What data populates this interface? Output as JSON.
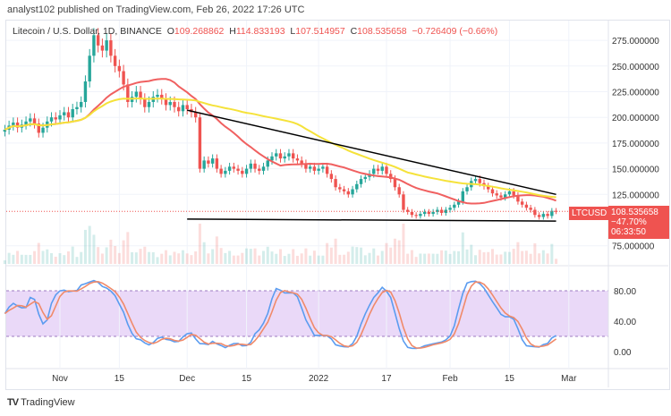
{
  "publish_line": "analyst102 published on TradingView.com, Feb 26, 2022 17:26 UTC",
  "legend": {
    "symbol": "Litecoin / U.S. Dollar, 1D, BINANCE",
    "o_label": "O",
    "o": "109.268862",
    "h_label": "H",
    "h": "114.833193",
    "l_label": "L",
    "l": "107.514957",
    "c_label": "C",
    "c": "108.535658",
    "change": "−0.726409 (−0.66%)"
  },
  "price_tag": {
    "symbol": "LTCUSD",
    "price": "108.535658",
    "change_pct": "−47.70%",
    "countdown": "06:33:50"
  },
  "brand": "TradingView",
  "colors": {
    "up": "#26a69a",
    "down": "#ef5350",
    "sma_fast": "#f06060",
    "sma_slow": "#f5e23a",
    "stoch_k": "#5b9cf0",
    "stoch_d": "#f08a6a",
    "stoch_band": "#e1c9f5",
    "trendline": "#000000"
  },
  "chart_data": {
    "type": "candlestick",
    "price_axis_ticks": [
      "275.000000",
      "250.000000",
      "225.000000",
      "200.000000",
      "175.000000",
      "150.000000",
      "125.000000",
      "75.000000"
    ],
    "price_axis_values": [
      275,
      250,
      225,
      200,
      175,
      150,
      125,
      75
    ],
    "stoch_axis_ticks": [
      "80.00",
      "40.00",
      "0.00"
    ],
    "stoch_axis_values": [
      80,
      40,
      0
    ],
    "time_axis_ticks": [
      "Nov",
      "15",
      "Dec",
      "15",
      "2022",
      "17",
      "Feb",
      "15",
      "Mar"
    ],
    "time_axis_dates": [
      "2021-11-01",
      "2021-11-15",
      "2021-12-01",
      "2021-12-15",
      "2022-01-01",
      "2022-01-17",
      "2022-02-01",
      "2022-02-15",
      "2022-03-01"
    ],
    "closes": {
      "2021-10": {
        "from_day": 19,
        "values": [
          188,
          192,
          195,
          190,
          193,
          196,
          199,
          194,
          185,
          190,
          196,
          200,
          198
        ]
      },
      "2021-11": {
        "from_day": 1,
        "values": [
          202,
          205,
          200,
          208,
          210,
          215,
          235,
          260,
          280,
          270,
          265,
          275,
          260,
          250,
          245,
          232,
          215,
          220,
          225,
          218,
          210,
          215,
          220,
          222,
          218,
          212,
          215,
          210,
          206,
          212
        ]
      },
      "2021-12": {
        "from_day": 1,
        "values": [
          208,
          205,
          200,
          150,
          158,
          155,
          160,
          150,
          145,
          148,
          152,
          150,
          148,
          145,
          150,
          155,
          150,
          148,
          152,
          158,
          162,
          165,
          160,
          162,
          165,
          160,
          158,
          155,
          150,
          152,
          148
        ]
      },
      "2022-01": {
        "from_day": 1,
        "values": [
          150,
          152,
          145,
          140,
          132,
          130,
          128,
          125,
          130,
          135,
          140,
          142,
          145,
          150,
          148,
          152,
          145,
          140,
          132,
          125,
          110,
          108,
          105,
          104,
          106,
          108,
          106,
          108,
          110,
          107,
          110
        ]
      },
      "2022-02": {
        "from_day": 1,
        "values": [
          112,
          115,
          118,
          128,
          132,
          138,
          140,
          136,
          133,
          130,
          126,
          124,
          122,
          125,
          128,
          124,
          118,
          115,
          112,
          110,
          105,
          103,
          106,
          104,
          109,
          108.54
        ]
      }
    },
    "trendlines": [
      {
        "name": "descending resistance",
        "from": [
          "2021-12-01",
          207
        ],
        "to": [
          "2022-02-26",
          125
        ]
      },
      {
        "name": "horizontal support",
        "from": [
          "2021-12-01",
          101
        ],
        "to": [
          "2022-02-26",
          99
        ]
      }
    ],
    "moving_averages": [
      20,
      50
    ],
    "stoch_band": [
      20,
      80
    ]
  }
}
